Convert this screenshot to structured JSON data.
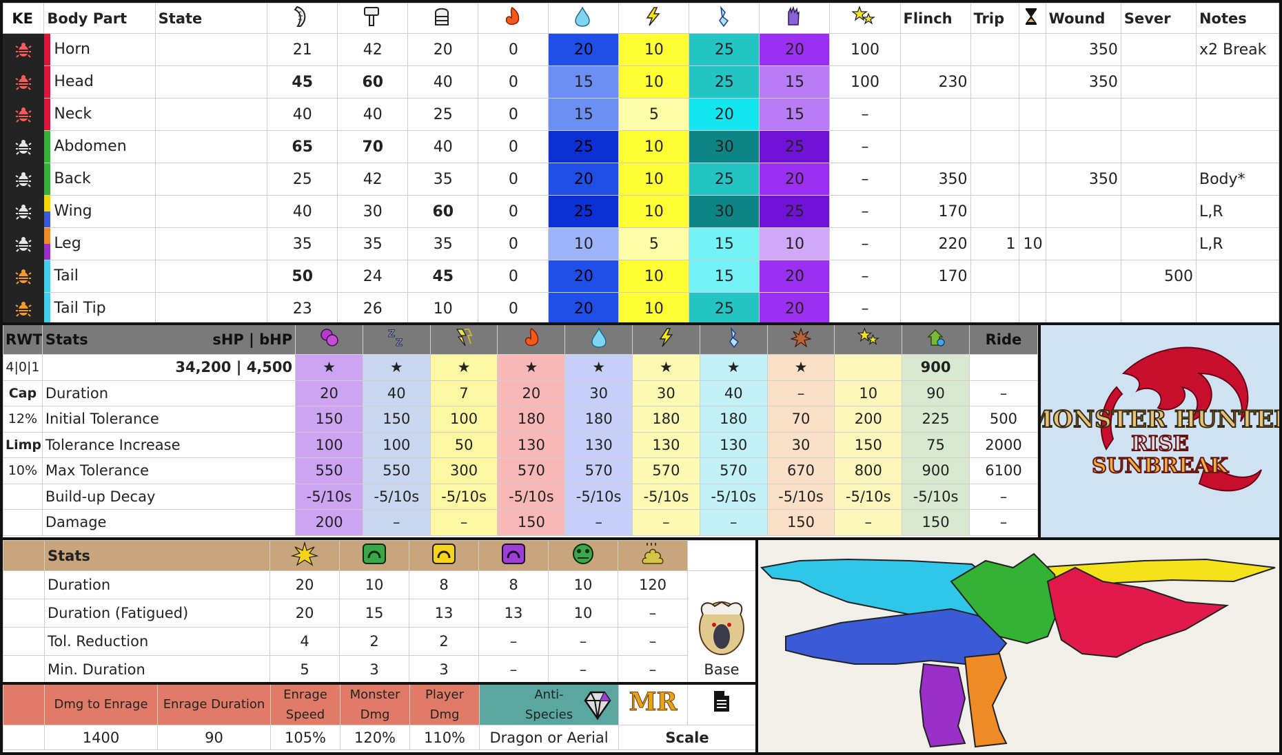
{
  "hitzone": {
    "headers": {
      "ke": "KE",
      "body_part": "Body Part",
      "state": "State",
      "flinch": "Flinch",
      "trip": "Trip",
      "wound": "Wound",
      "sever": "Sever",
      "notes": "Notes"
    },
    "header_icons": [
      "sever-blade-icon",
      "blunt-hammer-icon",
      "shot-ammo-icon",
      "fire-icon",
      "water-icon",
      "thunder-icon",
      "ice-icon",
      "dragon-icon",
      "stun-stars-icon",
      "hourglass-icon"
    ],
    "rows": [
      {
        "part": "Horn",
        "color": "#dc143c",
        "ke_color": "#ff5a5a",
        "sever": "21",
        "blunt": "42",
        "shot": "20",
        "fire": "0",
        "water": "20",
        "thunder": "10",
        "ice": "25",
        "dragon": "20",
        "stun": "100",
        "flinch": "",
        "trip": "",
        "trip_time": "",
        "wound": "350",
        "sever_hp": "",
        "notes": "x2 Break"
      },
      {
        "part": "Head",
        "color": "#dc143c",
        "ke_color": "#ff5a5a",
        "sever": "45",
        "blunt": "60",
        "shot": "40",
        "fire": "0",
        "water": "15",
        "thunder": "10",
        "ice": "25",
        "dragon": "15",
        "stun": "100",
        "flinch": "230",
        "trip": "",
        "trip_time": "",
        "wound": "350",
        "sever_hp": "",
        "notes": ""
      },
      {
        "part": "Neck",
        "color": "#dc143c",
        "ke_color": "#ff5a5a",
        "sever": "40",
        "blunt": "40",
        "shot": "25",
        "fire": "0",
        "water": "15",
        "thunder": "5",
        "ice": "20",
        "dragon": "15",
        "stun": "–",
        "flinch": "",
        "trip": "",
        "trip_time": "",
        "wound": "",
        "sever_hp": "",
        "notes": ""
      },
      {
        "part": "Abdomen",
        "color": "#33b233",
        "ke_color": "#e6e6e6",
        "sever": "65",
        "blunt": "70",
        "shot": "40",
        "fire": "0",
        "water": "25",
        "thunder": "10",
        "ice": "30",
        "dragon": "25",
        "stun": "–",
        "flinch": "",
        "trip": "",
        "trip_time": "",
        "wound": "",
        "sever_hp": "",
        "notes": ""
      },
      {
        "part": "Back",
        "color": "#33b233",
        "ke_color": "#e6e6e6",
        "sever": "25",
        "blunt": "42",
        "shot": "35",
        "fire": "0",
        "water": "20",
        "thunder": "10",
        "ice": "25",
        "dragon": "20",
        "stun": "–",
        "flinch": "350",
        "trip": "",
        "trip_time": "",
        "wound": "350",
        "sever_hp": "",
        "notes": "Body*"
      },
      {
        "part": "Wing",
        "color": "#f5d800",
        "color2": "#3b5bd6",
        "ke_color": "#e6e6e6",
        "sever": "40",
        "blunt": "30",
        "shot": "60",
        "fire": "0",
        "water": "25",
        "thunder": "10",
        "ice": "30",
        "dragon": "25",
        "stun": "–",
        "flinch": "170",
        "trip": "",
        "trip_time": "",
        "wound": "",
        "sever_hp": "",
        "notes": "L,R"
      },
      {
        "part": "Leg",
        "color": "#f08a24",
        "color2": "#9b2fc9",
        "ke_color": "#e6e6e6",
        "sever": "35",
        "blunt": "35",
        "shot": "35",
        "fire": "0",
        "water": "10",
        "thunder": "5",
        "ice": "15",
        "dragon": "10",
        "stun": "–",
        "flinch": "220",
        "trip": "1",
        "trip_time": "10",
        "wound": "",
        "sever_hp": "",
        "notes": "L,R"
      },
      {
        "part": "Tail",
        "color": "#3fd0f0",
        "ke_color": "#f39a2a",
        "sever": "50",
        "blunt": "24",
        "shot": "45",
        "fire": "0",
        "water": "20",
        "thunder": "10",
        "ice": "15",
        "dragon": "20",
        "stun": "–",
        "flinch": "170",
        "trip": "",
        "trip_time": "",
        "wound": "",
        "sever_hp": "500",
        "notes": ""
      },
      {
        "part": "Tail Tip",
        "color": "#3fd0f0",
        "ke_color": "#f39a2a",
        "sever": "23",
        "blunt": "26",
        "shot": "10",
        "fire": "0",
        "water": "20",
        "thunder": "10",
        "ice": "25",
        "dragon": "20",
        "stun": "–",
        "flinch": "",
        "trip": "",
        "trip_time": "",
        "wound": "",
        "sever_hp": "",
        "notes": ""
      }
    ]
  },
  "status": {
    "corner": "RWT",
    "stats_label": "Stats",
    "hp_label": "sHP  |  bHP",
    "hp_value": "34,200 | 4,500",
    "rwt_value": "4|0|1",
    "ride_label": "Ride",
    "ailment_icons": [
      "poison-icon",
      "sleep-icon",
      "paralysis-icon",
      "fire-blight-icon",
      "water-blight-icon",
      "thunder-blight-icon",
      "ice-blight-icon",
      "blast-icon",
      "stun-icon",
      "exhaust-icon"
    ],
    "ailment_colors": [
      "#cda4f2",
      "#c8d6ef",
      "#fcf7a0",
      "#f9b8b8",
      "#c6cff7",
      "#fcf9b2",
      "#c2f2f8",
      "#fbe0c8",
      "#fdf6bb",
      "#d8e9d0"
    ],
    "effectiveness": [
      "★",
      "★",
      "★",
      "★",
      "★",
      "★",
      "★",
      "★",
      "",
      "900"
    ],
    "side_labels": [
      "Cap",
      "12%",
      "Limp",
      "10%",
      "",
      ""
    ],
    "rows": [
      {
        "label": "Duration",
        "values": [
          "20",
          "40",
          "7",
          "20",
          "30",
          "30",
          "40",
          "–",
          "10",
          "90"
        ],
        "ride": "–"
      },
      {
        "label": "Initial Tolerance",
        "values": [
          "150",
          "150",
          "100",
          "180",
          "180",
          "180",
          "180",
          "70",
          "200",
          "225"
        ],
        "ride": "500"
      },
      {
        "label": "Tolerance Increase",
        "values": [
          "100",
          "100",
          "50",
          "130",
          "130",
          "130",
          "130",
          "30",
          "150",
          "75"
        ],
        "ride": "2000"
      },
      {
        "label": "Max Tolerance",
        "values": [
          "550",
          "550",
          "300",
          "570",
          "570",
          "570",
          "570",
          "670",
          "800",
          "900"
        ],
        "ride": "6100"
      },
      {
        "label": "Build-up Decay",
        "values": [
          "-5/10s",
          "-5/10s",
          "-5/10s",
          "-5/10s",
          "-5/10s",
          "-5/10s",
          "-5/10s",
          "-5/10s",
          "-5/10s",
          "-5/10s"
        ],
        "ride": "–"
      },
      {
        "label": "Damage",
        "values": [
          "200",
          "–",
          "–",
          "150",
          "–",
          "–",
          "–",
          "150",
          "–",
          "150"
        ],
        "ride": "–"
      }
    ]
  },
  "blights": {
    "stats_label": "Stats",
    "icons": [
      "flash-trap-icon",
      "pitfall-trap-icon",
      "shock-trap-icon",
      "sonic-trap-icon",
      "tranq-icon",
      "dung-icon"
    ],
    "icon_colors": [
      "#f6d41a",
      "#3aa84a",
      "#f6d41a",
      "#9b3fd6",
      "#3aa84a",
      "#d3c44a"
    ],
    "rows": [
      {
        "label": "Duration",
        "values": [
          "20",
          "10",
          "8",
          "8",
          "10",
          "120"
        ]
      },
      {
        "label": "Duration (Fatigued)",
        "values": [
          "20",
          "15",
          "13",
          "13",
          "10",
          "–"
        ]
      },
      {
        "label": "Tol. Reduction",
        "values": [
          "4",
          "2",
          "2",
          "–",
          "–",
          "–"
        ]
      },
      {
        "label": "Min. Duration",
        "values": [
          "5",
          "3",
          "3",
          "–",
          "–",
          "–"
        ]
      }
    ],
    "base_label": "Base"
  },
  "bottom": {
    "headers": [
      "Dmg to Enrage",
      "Enrage Duration",
      "Enrage Speed",
      "Monster Dmg",
      "Player Dmg"
    ],
    "values": [
      "1400",
      "90",
      "105%",
      "120%",
      "110%"
    ],
    "anti_species_label": "Anti-Species",
    "anti_species_value": "Dragon or Aerial",
    "rank_label": "MR",
    "scale_label": "Scale"
  },
  "logo": {
    "line1": "MONSTER HUNTER",
    "line2": "RISE",
    "line3": "SUNBREAK"
  },
  "colors": {
    "water_shades": [
      "#1f4fe8",
      "#6b8ff4",
      "#9db4fb",
      "#0d2fd6"
    ],
    "thunder_shades": [
      "#ffff33",
      "#ffffa8"
    ],
    "ice_shades": [
      "#22c4c4",
      "#13e6f0",
      "#0e8585",
      "#74f2f6"
    ],
    "dragon_shades": [
      "#9b2ff2",
      "#b87df6",
      "#7013d6",
      "#d0a8fa"
    ]
  }
}
